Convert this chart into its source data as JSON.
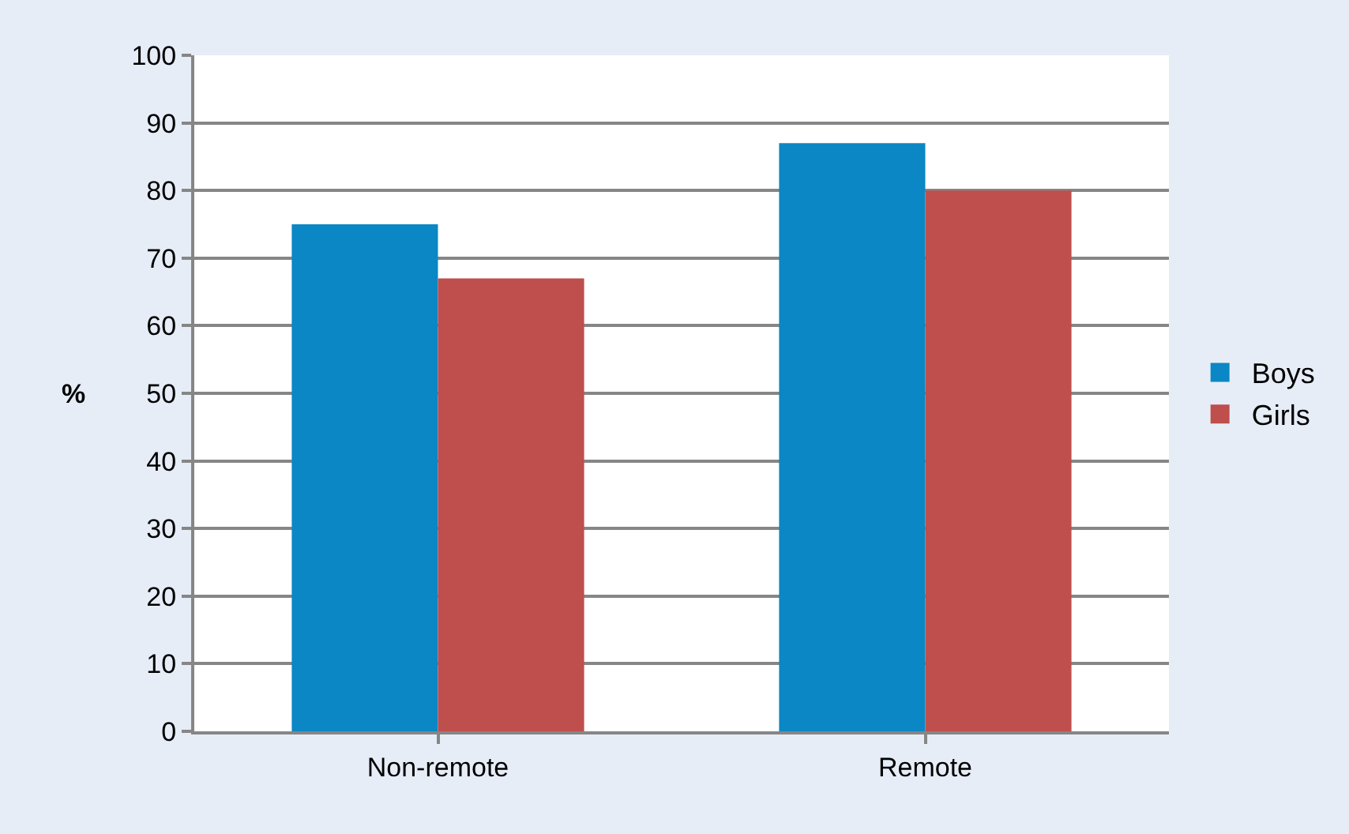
{
  "chart_data": {
    "type": "bar",
    "ylabel": "%",
    "categories": [
      "Non-remote",
      "Remote"
    ],
    "series": [
      {
        "name": "Boys",
        "color": "#0a87c4",
        "values": [
          75,
          87
        ]
      },
      {
        "name": "Girls",
        "color": "#be4f4c",
        "values": [
          67,
          80
        ]
      }
    ],
    "ylim": [
      0,
      100
    ],
    "yticks": [
      0,
      10,
      20,
      30,
      40,
      50,
      60,
      70,
      80,
      90,
      100
    ],
    "grid": "y",
    "legend": "right"
  }
}
